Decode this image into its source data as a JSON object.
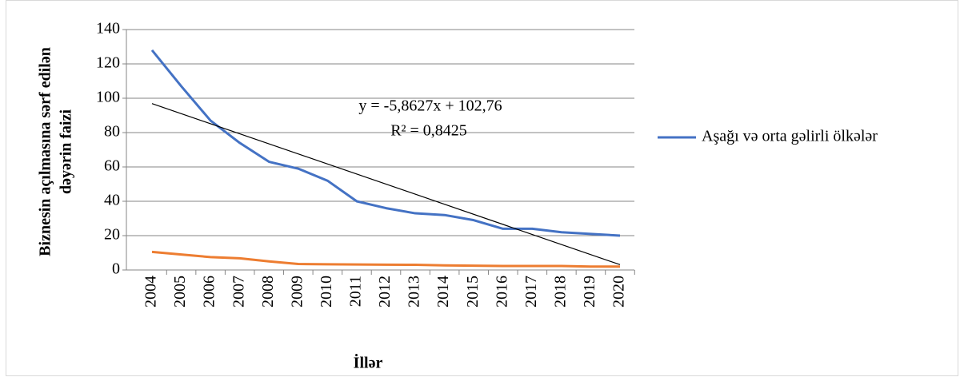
{
  "chart_data": {
    "type": "line",
    "ylabel_lines": [
      "Biznesin açılmasına sərf edilən",
      "dəyərin faizi"
    ],
    "xlabel": "İllər",
    "categories": [
      "2004",
      "2005",
      "2006",
      "2007",
      "2008",
      "2009",
      "2010",
      "2011",
      "2012",
      "2013",
      "2014",
      "2015",
      "2016",
      "2017",
      "2018",
      "2019",
      "2020"
    ],
    "series": [
      {
        "name": "Aşağı və orta gəlirli ölkələr",
        "color": "#4472c4",
        "values": [
          128,
          107,
          87,
          74,
          63,
          59,
          52,
          40,
          36,
          33,
          32,
          29,
          24,
          24,
          22,
          21,
          20
        ]
      },
      {
        "name": null,
        "color": "#ed7d31",
        "values": [
          10.5,
          9,
          7.5,
          6.8,
          5,
          3.5,
          3.3,
          3.2,
          3.1,
          3,
          2.7,
          2.5,
          2.3,
          2.3,
          2.3,
          2,
          2
        ]
      }
    ],
    "trendline": {
      "slope": -5.8627,
      "intercept": 102.76,
      "color": "#000000",
      "equation": "y = -5,8627x + 102,76",
      "r2": "R² = 0,8425"
    },
    "ylim": [
      0,
      140
    ],
    "yticks": [
      0,
      20,
      40,
      60,
      80,
      100,
      120,
      140
    ],
    "grid": true,
    "legend": "right"
  }
}
